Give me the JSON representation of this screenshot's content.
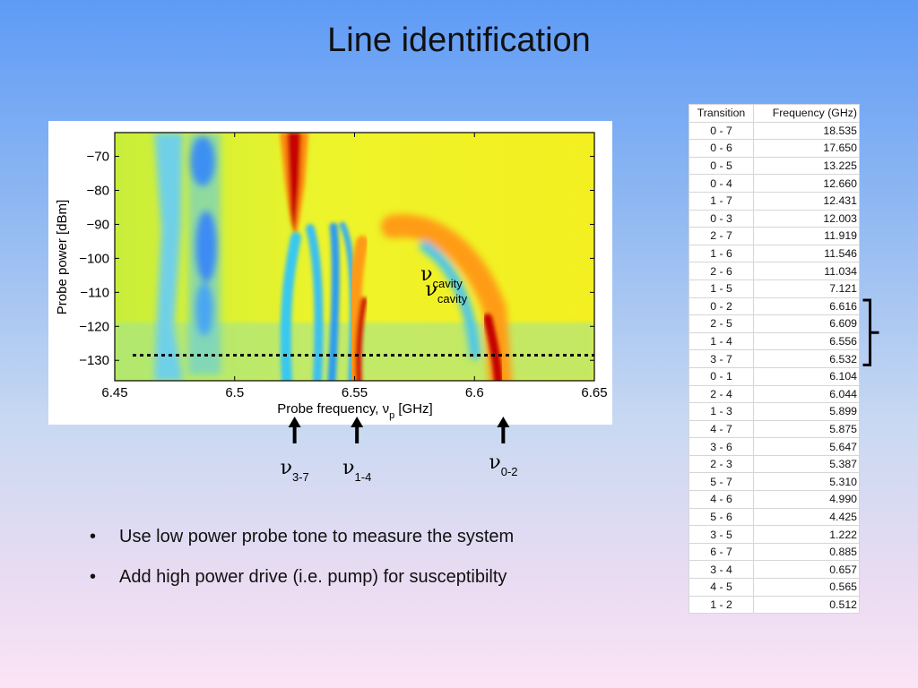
{
  "slide": {
    "title": "Line identification",
    "bullets": [
      "Use low power probe tone to measure the system",
      "Add high power drive (i.e. pump) for susceptibilty"
    ]
  },
  "chart_data": {
    "type": "heatmap",
    "xlabel_main": "Probe frequency, ν",
    "xlabel_sub": "p",
    "xlabel_unit": " [GHz]",
    "ylabel": "Probe power [dBm]",
    "xlim": [
      6.45,
      6.65
    ],
    "ylim": [
      -136,
      -63
    ],
    "x_ticks": [
      6.45,
      6.5,
      6.55,
      6.6,
      6.65
    ],
    "x_tick_labels": [
      "6.45",
      "6.5",
      "6.55",
      "6.6",
      "6.65"
    ],
    "y_ticks": [
      -70,
      -80,
      -90,
      -100,
      -110,
      -120,
      -130
    ],
    "y_tick_labels": [
      "−70",
      "−80",
      "−90",
      "−100",
      "−110",
      "−120",
      "−130"
    ],
    "dotted_line_power_dbm": -128.5,
    "colors": {
      "low": "#1030ff",
      "mid_low": "#20d8ff",
      "mid": "#f5f020",
      "mid_high": "#ff9a10",
      "high": "#c00000"
    },
    "annotations": [
      {
        "symbol": "ν",
        "sub": "cavity",
        "x": 6.585,
        "y": -106.5
      },
      {
        "symbol": "ν",
        "sub": "cavity",
        "x": 6.587,
        "y": -111
      }
    ],
    "markers": [
      {
        "symbol": "ν",
        "sub": "3-7",
        "x": 6.525
      },
      {
        "symbol": "ν",
        "sub": "1-4",
        "x": 6.551
      },
      {
        "symbol": "ν",
        "sub": "0-2",
        "x": 6.612
      }
    ]
  },
  "table": {
    "headers": [
      "Transition",
      "Frequency (GHz)"
    ],
    "rows": [
      [
        "0 - 7",
        "18.535"
      ],
      [
        "0 - 6",
        "17.650"
      ],
      [
        "0 - 5",
        "13.225"
      ],
      [
        "0 - 4",
        "12.660"
      ],
      [
        "1 - 7",
        "12.431"
      ],
      [
        "0 - 3",
        "12.003"
      ],
      [
        "2 - 7",
        "11.919"
      ],
      [
        "1 - 6",
        "11.546"
      ],
      [
        "2 - 6",
        "11.034"
      ],
      [
        "1 - 5",
        "7.121"
      ],
      [
        "0 - 2",
        "6.616"
      ],
      [
        "2 - 5",
        "6.609"
      ],
      [
        "1 - 4",
        "6.556"
      ],
      [
        "3 - 7",
        "6.532"
      ],
      [
        "0 - 1",
        "6.104"
      ],
      [
        "2 - 4",
        "6.044"
      ],
      [
        "1 - 3",
        "5.899"
      ],
      [
        "4 - 7",
        "5.875"
      ],
      [
        "3 - 6",
        "5.647"
      ],
      [
        "2 - 3",
        "5.387"
      ],
      [
        "5 - 7",
        "5.310"
      ],
      [
        "4 - 6",
        "4.990"
      ],
      [
        "5 - 6",
        "4.425"
      ],
      [
        "3 - 5",
        "1.222"
      ],
      [
        "6 - 7",
        "0.885"
      ],
      [
        "3 - 4",
        "0.657"
      ],
      [
        "4 - 5",
        "0.565"
      ],
      [
        "1 - 2",
        "0.512"
      ]
    ],
    "bracket_rows": [
      10,
      13
    ]
  }
}
